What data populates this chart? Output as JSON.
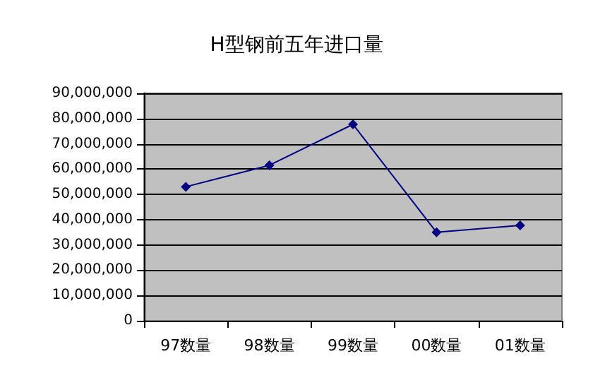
{
  "chart_data": {
    "type": "line",
    "title": "H型钢前五年进口量",
    "categories": [
      "97数量",
      "98数量",
      "99数量",
      "00数量",
      "01数量"
    ],
    "series": [
      {
        "color": "#000080",
        "values": [
          53000000,
          61500000,
          77700000,
          35000000,
          37700000
        ]
      }
    ],
    "ylim": [
      0,
      90000000
    ],
    "yticks": [
      0,
      {
        "value": 10000000,
        "label": "10,000,000"
      },
      {
        "value": 20000000,
        "label": "20,000,000"
      },
      {
        "value": 30000000,
        "label": "30,000,000"
      },
      {
        "value": 40000000,
        "label": "40,000,000"
      },
      {
        "value": 50000000,
        "label": "50,000,000"
      },
      {
        "value": 60000000,
        "label": "60,000,000"
      },
      {
        "value": 70000000,
        "label": "70,000,000"
      },
      {
        "value": 80000000,
        "label": "80,000,000"
      },
      {
        "value": 90000000,
        "label": "90,000,000"
      }
    ],
    "grid": "y",
    "marker": "diamond",
    "line_style": "solid"
  }
}
